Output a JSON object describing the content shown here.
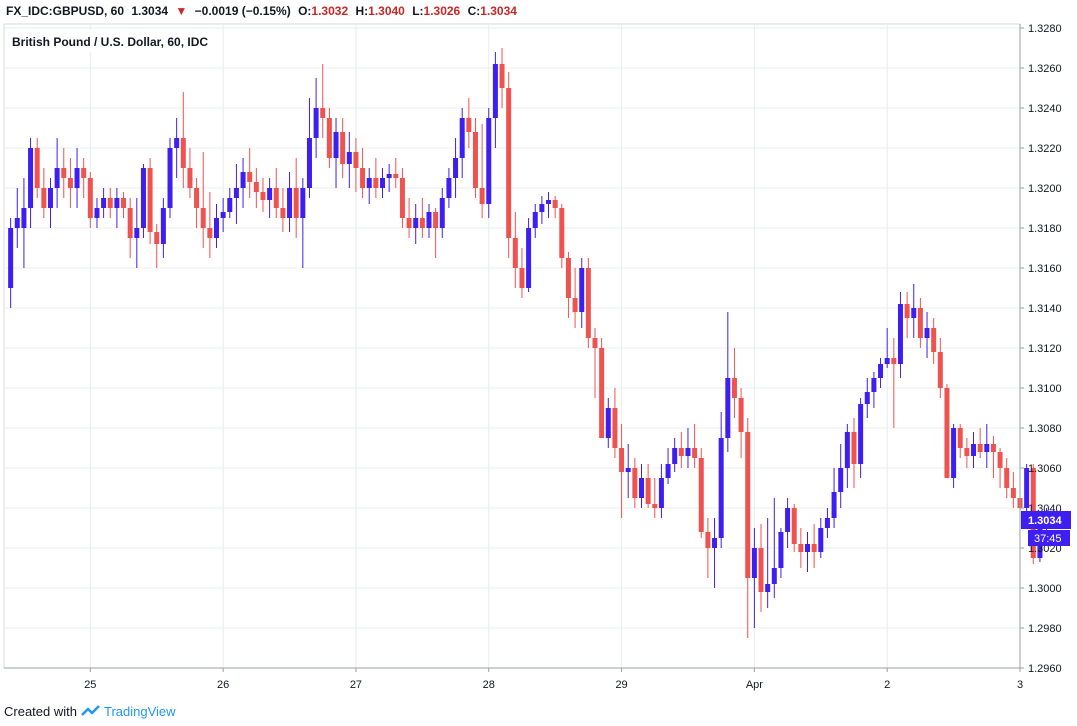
{
  "header": {
    "symbol": "FX_IDC:GBPUSD, 60",
    "last": "1.3034",
    "change": "−0.0019 (−0.15%)",
    "o_label": "O:",
    "o_value": "1.3032",
    "h_label": "H:",
    "h_value": "1.3040",
    "l_label": "L:",
    "l_value": "1.3026",
    "c_label": "C:",
    "c_value": "1.3034"
  },
  "footer": {
    "created_with": "Created with",
    "brand": "TradingView"
  },
  "colors": {
    "up": "#3d1ff2",
    "down": "#ef5350",
    "grid": "#e8ecf0",
    "label_bg": "#3d1ff2"
  },
  "chart_data": {
    "type": "candlestick",
    "title": "British Pound / U.S. Dollar, 60, IDC",
    "x_ticks": [
      {
        "label": "25",
        "t": 12
      },
      {
        "label": "26",
        "t": 32
      },
      {
        "label": "27",
        "t": 52
      },
      {
        "label": "28",
        "t": 72
      },
      {
        "label": "29",
        "t": 92
      },
      {
        "label": "Apr",
        "t": 112
      },
      {
        "label": "2",
        "t": 132
      },
      {
        "label": "3",
        "t": 152
      }
    ],
    "x_range": [
      -1,
      152
    ],
    "y_ticks": [
      "1.2960",
      "1.2980",
      "1.3000",
      "1.3020",
      "1.3040",
      "1.3060",
      "1.3080",
      "1.3100",
      "1.3120",
      "1.3140",
      "1.3160",
      "1.3180",
      "1.3200",
      "1.3220",
      "1.3240",
      "1.3260",
      "1.3280"
    ],
    "ylim": [
      1.296,
      1.3282
    ],
    "price_label": "1.3034",
    "countdown_label": "37:45",
    "grid": true,
    "candles": [
      [
        1.315,
        1.3185,
        1.314,
        1.318
      ],
      [
        1.318,
        1.32,
        1.317,
        1.3185
      ],
      [
        1.318,
        1.3205,
        1.316,
        1.319
      ],
      [
        1.319,
        1.3225,
        1.318,
        1.322
      ],
      [
        1.322,
        1.3225,
        1.3195,
        1.32
      ],
      [
        1.32,
        1.321,
        1.3185,
        1.319
      ],
      [
        1.319,
        1.3205,
        1.318,
        1.32
      ],
      [
        1.32,
        1.3225,
        1.319,
        1.321
      ],
      [
        1.321,
        1.322,
        1.3195,
        1.3205
      ],
      [
        1.3205,
        1.3215,
        1.319,
        1.32
      ],
      [
        1.32,
        1.322,
        1.319,
        1.321
      ],
      [
        1.321,
        1.3215,
        1.3195,
        1.3205
      ],
      [
        1.3205,
        1.3208,
        1.318,
        1.3185
      ],
      [
        1.3185,
        1.3195,
        1.318,
        1.319
      ],
      [
        1.319,
        1.32,
        1.3185,
        1.3195
      ],
      [
        1.3195,
        1.32,
        1.3185,
        1.319
      ],
      [
        1.319,
        1.32,
        1.318,
        1.3195
      ],
      [
        1.3195,
        1.3198,
        1.3185,
        1.319
      ],
      [
        1.319,
        1.3195,
        1.3165,
        1.3175
      ],
      [
        1.3175,
        1.3195,
        1.316,
        1.318
      ],
      [
        1.318,
        1.3212,
        1.3175,
        1.321
      ],
      [
        1.321,
        1.3215,
        1.3172,
        1.3178
      ],
      [
        1.3178,
        1.3182,
        1.316,
        1.3172
      ],
      [
        1.3172,
        1.3195,
        1.3165,
        1.319
      ],
      [
        1.319,
        1.3225,
        1.3185,
        1.322
      ],
      [
        1.322,
        1.3235,
        1.3205,
        1.3225
      ],
      [
        1.3225,
        1.3248,
        1.32,
        1.321
      ],
      [
        1.321,
        1.322,
        1.3195,
        1.32
      ],
      [
        1.32,
        1.3205,
        1.318,
        1.319
      ],
      [
        1.319,
        1.3218,
        1.317,
        1.318
      ],
      [
        1.318,
        1.3198,
        1.3165,
        1.3175
      ],
      [
        1.3175,
        1.3192,
        1.317,
        1.3185
      ],
      [
        1.3185,
        1.3195,
        1.3178,
        1.3188
      ],
      [
        1.3188,
        1.32,
        1.3185,
        1.3195
      ],
      [
        1.3195,
        1.3212,
        1.3182,
        1.32
      ],
      [
        1.32,
        1.3215,
        1.319,
        1.3208
      ],
      [
        1.3208,
        1.322,
        1.3195,
        1.3203
      ],
      [
        1.3203,
        1.321,
        1.319,
        1.3198
      ],
      [
        1.3198,
        1.3205,
        1.3188,
        1.3194
      ],
      [
        1.3194,
        1.3205,
        1.3185,
        1.32
      ],
      [
        1.32,
        1.321,
        1.3185,
        1.319
      ],
      [
        1.319,
        1.32,
        1.3178,
        1.3185
      ],
      [
        1.3185,
        1.3208,
        1.3178,
        1.32
      ],
      [
        1.32,
        1.3215,
        1.3175,
        1.3185
      ],
      [
        1.3185,
        1.3205,
        1.316,
        1.32
      ],
      [
        1.32,
        1.3245,
        1.3195,
        1.3225
      ],
      [
        1.3225,
        1.3255,
        1.3215,
        1.324
      ],
      [
        1.324,
        1.3262,
        1.3225,
        1.3235
      ],
      [
        1.3235,
        1.324,
        1.321,
        1.3215
      ],
      [
        1.3215,
        1.3235,
        1.32,
        1.3228
      ],
      [
        1.3228,
        1.3235,
        1.3205,
        1.3212
      ],
      [
        1.3212,
        1.3228,
        1.32,
        1.3218
      ],
      [
        1.3218,
        1.3225,
        1.3198,
        1.321
      ],
      [
        1.321,
        1.322,
        1.3195,
        1.32
      ],
      [
        1.32,
        1.321,
        1.3192,
        1.3205
      ],
      [
        1.3205,
        1.3215,
        1.3195,
        1.32
      ],
      [
        1.32,
        1.321,
        1.3195,
        1.3205
      ],
      [
        1.3205,
        1.3212,
        1.3198,
        1.3207
      ],
      [
        1.3207,
        1.3215,
        1.32,
        1.3205
      ],
      [
        1.3205,
        1.321,
        1.318,
        1.3185
      ],
      [
        1.3185,
        1.3195,
        1.3175,
        1.318
      ],
      [
        1.318,
        1.3192,
        1.3172,
        1.3185
      ],
      [
        1.3185,
        1.3195,
        1.3175,
        1.318
      ],
      [
        1.318,
        1.3192,
        1.3175,
        1.3188
      ],
      [
        1.3188,
        1.319,
        1.3165,
        1.318
      ],
      [
        1.318,
        1.32,
        1.3175,
        1.3195
      ],
      [
        1.3195,
        1.321,
        1.319,
        1.3205
      ],
      [
        1.3205,
        1.3225,
        1.3195,
        1.3215
      ],
      [
        1.3215,
        1.324,
        1.3205,
        1.3235
      ],
      [
        1.3235,
        1.3245,
        1.322,
        1.3228
      ],
      [
        1.3228,
        1.3235,
        1.3195,
        1.32
      ],
      [
        1.32,
        1.3232,
        1.3185,
        1.3192
      ],
      [
        1.3192,
        1.324,
        1.3185,
        1.3235
      ],
      [
        1.3235,
        1.3268,
        1.322,
        1.3262
      ],
      [
        1.3262,
        1.327,
        1.324,
        1.325
      ],
      [
        1.325,
        1.3258,
        1.3165,
        1.3175
      ],
      [
        1.3175,
        1.3188,
        1.315,
        1.316
      ],
      [
        1.316,
        1.317,
        1.3145,
        1.315
      ],
      [
        1.315,
        1.3185,
        1.3148,
        1.318
      ],
      [
        1.318,
        1.3192,
        1.3175,
        1.3188
      ],
      [
        1.3188,
        1.3196,
        1.3182,
        1.3192
      ],
      [
        1.3192,
        1.3198,
        1.3185,
        1.3194
      ],
      [
        1.3194,
        1.3196,
        1.3185,
        1.319
      ],
      [
        1.319,
        1.3192,
        1.316,
        1.3165
      ],
      [
        1.3165,
        1.3168,
        1.3135,
        1.3145
      ],
      [
        1.3145,
        1.316,
        1.313,
        1.3138
      ],
      [
        1.3138,
        1.3165,
        1.313,
        1.316
      ],
      [
        1.316,
        1.3165,
        1.312,
        1.3125
      ],
      [
        1.3125,
        1.313,
        1.3095,
        1.312
      ],
      [
        1.312,
        1.3125,
        1.3075,
        1.3075
      ],
      [
        1.3075,
        1.3095,
        1.307,
        1.309
      ],
      [
        1.309,
        1.31,
        1.3065,
        1.307
      ],
      [
        1.307,
        1.3082,
        1.3035,
        1.3058
      ],
      [
        1.3058,
        1.3072,
        1.3045,
        1.306
      ],
      [
        1.306,
        1.3065,
        1.304,
        1.3045
      ],
      [
        1.3045,
        1.3062,
        1.304,
        1.3055
      ],
      [
        1.3055,
        1.3062,
        1.304,
        1.3042
      ],
      [
        1.3042,
        1.3055,
        1.3035,
        1.304
      ],
      [
        1.304,
        1.3062,
        1.3035,
        1.3055
      ],
      [
        1.3055,
        1.307,
        1.3052,
        1.3062
      ],
      [
        1.3062,
        1.3075,
        1.3058,
        1.307
      ],
      [
        1.307,
        1.3078,
        1.306,
        1.3066
      ],
      [
        1.3066,
        1.308,
        1.306,
        1.307
      ],
      [
        1.307,
        1.3082,
        1.306,
        1.3065
      ],
      [
        1.3065,
        1.307,
        1.3025,
        1.3028
      ],
      [
        1.3028,
        1.3035,
        1.3005,
        1.302
      ],
      [
        1.302,
        1.3035,
        1.3,
        1.3025
      ],
      [
        1.3025,
        1.3088,
        1.302,
        1.3075
      ],
      [
        1.3075,
        1.3138,
        1.3068,
        1.3105
      ],
      [
        1.3105,
        1.312,
        1.3085,
        1.3095
      ],
      [
        1.3095,
        1.31,
        1.3065,
        1.3078
      ],
      [
        1.3078,
        1.3085,
        1.2975,
        1.3005
      ],
      [
        1.3005,
        1.303,
        1.298,
        1.302
      ],
      [
        1.302,
        1.3032,
        1.2988,
        1.2998
      ],
      [
        1.2998,
        1.3035,
        1.299,
        1.3002
      ],
      [
        1.3002,
        1.3045,
        1.2995,
        1.301
      ],
      [
        1.301,
        1.303,
        1.3005,
        1.3028
      ],
      [
        1.3028,
        1.3045,
        1.302,
        1.304
      ],
      [
        1.304,
        1.3042,
        1.3018,
        1.3022
      ],
      [
        1.3022,
        1.303,
        1.301,
        1.3018
      ],
      [
        1.3018,
        1.3028,
        1.3008,
        1.3022
      ],
      [
        1.3022,
        1.3032,
        1.301,
        1.3018
      ],
      [
        1.3018,
        1.3035,
        1.3015,
        1.303
      ],
      [
        1.303,
        1.304,
        1.3025,
        1.3035
      ],
      [
        1.3035,
        1.306,
        1.303,
        1.3048
      ],
      [
        1.3048,
        1.3072,
        1.304,
        1.306
      ],
      [
        1.306,
        1.3082,
        1.305,
        1.3078
      ],
      [
        1.3078,
        1.3085,
        1.305,
        1.3062
      ],
      [
        1.3062,
        1.3095,
        1.3055,
        1.3092
      ],
      [
        1.3092,
        1.3105,
        1.3085,
        1.3098
      ],
      [
        1.3098,
        1.3108,
        1.309,
        1.3105
      ],
      [
        1.3105,
        1.3115,
        1.31,
        1.3112
      ],
      [
        1.3112,
        1.313,
        1.311,
        1.3115
      ],
      [
        1.3115,
        1.3125,
        1.308,
        1.3112
      ],
      [
        1.3112,
        1.3148,
        1.3105,
        1.3142
      ],
      [
        1.3142,
        1.3148,
        1.3125,
        1.3135
      ],
      [
        1.3135,
        1.3152,
        1.3125,
        1.314
      ],
      [
        1.314,
        1.3145,
        1.312,
        1.3125
      ],
      [
        1.3125,
        1.3138,
        1.3115,
        1.313
      ],
      [
        1.313,
        1.3135,
        1.3112,
        1.3118
      ],
      [
        1.3118,
        1.3125,
        1.3095,
        1.31
      ],
      [
        1.31,
        1.3102,
        1.3055,
        1.3055
      ],
      [
        1.3055,
        1.3082,
        1.305,
        1.308
      ],
      [
        1.308,
        1.3082,
        1.3065,
        1.307
      ],
      [
        1.307,
        1.3075,
        1.306,
        1.3066
      ],
      [
        1.3066,
        1.3078,
        1.306,
        1.3072
      ],
      [
        1.3072,
        1.308,
        1.3065,
        1.3068
      ],
      [
        1.3068,
        1.3082,
        1.306,
        1.3072
      ],
      [
        1.3072,
        1.3076,
        1.3055,
        1.3068
      ],
      [
        1.3068,
        1.307,
        1.305,
        1.306
      ],
      [
        1.306,
        1.3065,
        1.3045,
        1.305
      ],
      [
        1.305,
        1.3058,
        1.304,
        1.3045
      ],
      [
        1.3045,
        1.3075,
        1.3035,
        1.304
      ],
      [
        1.304,
        1.3062,
        1.3035,
        1.306
      ],
      [
        1.306,
        1.3062,
        1.3012,
        1.3015
      ],
      [
        1.3015,
        1.3035,
        1.3013,
        1.3032
      ],
      [
        1.3032,
        1.304,
        1.3026,
        1.3034
      ]
    ]
  }
}
